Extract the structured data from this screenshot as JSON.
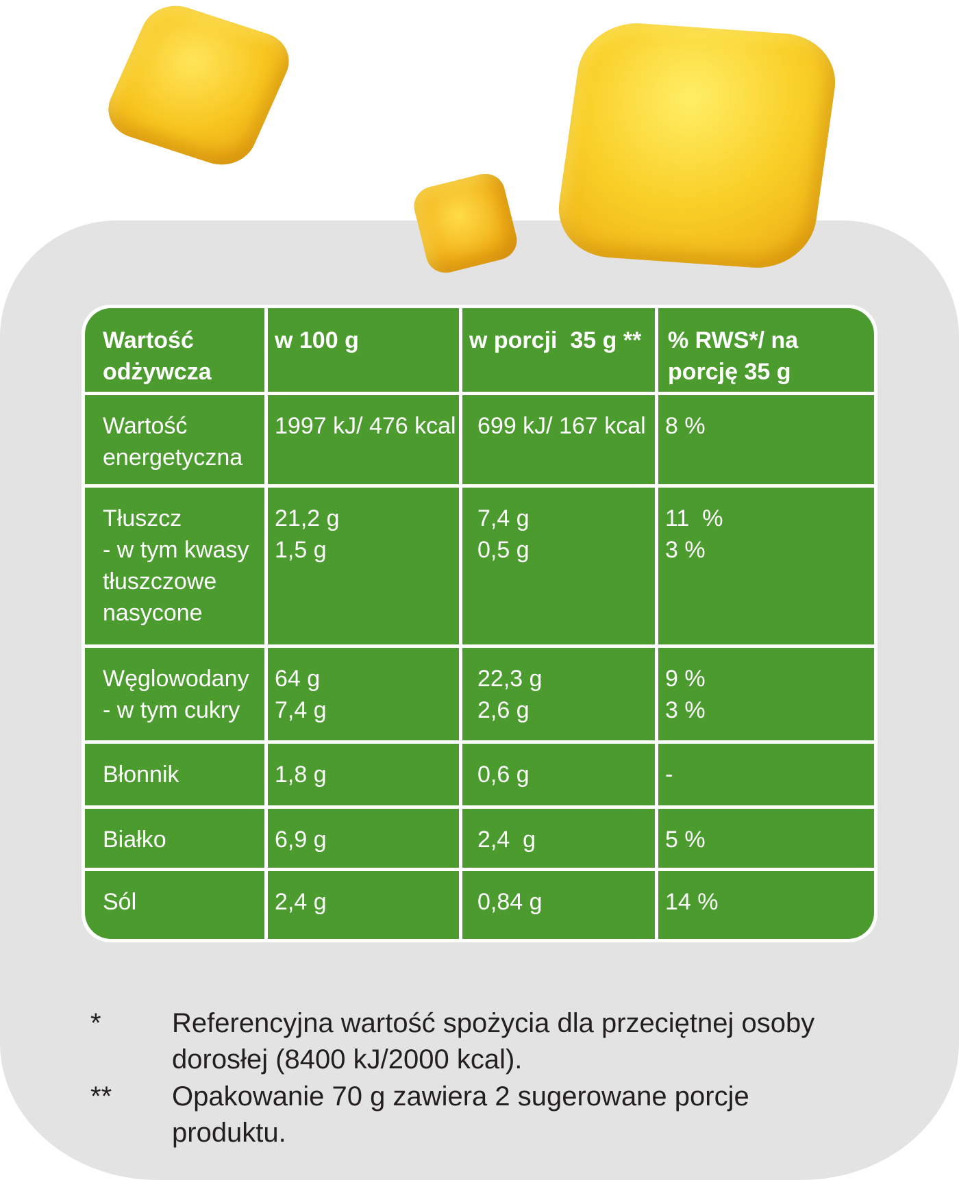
{
  "colors": {
    "table_green": "#4b9b2f",
    "panel_gray": "#e3e3e3",
    "text_dark": "#231f20"
  },
  "table": {
    "headers": [
      [
        "Wartość",
        "odżywcza"
      ],
      [
        "w 100 g"
      ],
      [
        "w porcji  35 g **"
      ],
      [
        "% RWS*/ na",
        "porcję 35 g"
      ]
    ],
    "rows": [
      [
        [
          "Wartość",
          "energetyczna"
        ],
        [
          "1997 kJ/ 476 kcal"
        ],
        [
          "699 kJ/ 167 kcal"
        ],
        [
          "8 %"
        ]
      ],
      [
        [
          "Tłuszcz",
          "- w tym kwasy",
          "tłuszczowe",
          "nasycone"
        ],
        [
          "21,2 g",
          "1,5 g"
        ],
        [
          "7,4 g",
          "0,5 g"
        ],
        [
          "11  %",
          "3 %"
        ]
      ],
      [
        [
          "Węglowodany",
          "- w tym cukry"
        ],
        [
          "64 g",
          "7,4 g"
        ],
        [
          "22,3 g",
          "2,6 g"
        ],
        [
          "9 %",
          "3 %"
        ]
      ],
      [
        [
          "Błonnik"
        ],
        [
          "1,8 g"
        ],
        [
          "0,6 g"
        ],
        [
          "-"
        ]
      ],
      [
        [
          "Białko"
        ],
        [
          "6,9 g"
        ],
        [
          "2,4  g"
        ],
        [
          "5 %"
        ]
      ],
      [
        [
          "Sól"
        ],
        [
          "2,4 g"
        ],
        [
          "0,84 g"
        ],
        [
          "14 %"
        ]
      ]
    ]
  },
  "footnotes": [
    {
      "mark": "*",
      "lines": [
        "Referencyjna wartość spożycia dla przeciętnej osoby",
        "dorosłej (8400 kJ/2000 kcal)."
      ]
    },
    {
      "mark": "**",
      "lines": [
        "Opakowanie 70 g zawiera 2 sugerowane porcje",
        "produktu."
      ]
    }
  ]
}
